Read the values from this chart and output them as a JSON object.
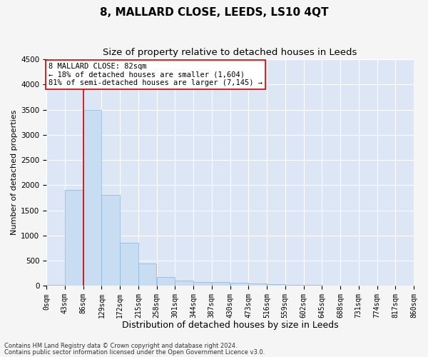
{
  "title": "8, MALLARD CLOSE, LEEDS, LS10 4QT",
  "subtitle": "Size of property relative to detached houses in Leeds",
  "xlabel": "Distribution of detached houses by size in Leeds",
  "ylabel": "Number of detached properties",
  "bin_edges": [
    0,
    43,
    86,
    129,
    172,
    215,
    258,
    301,
    344,
    387,
    430,
    473,
    516,
    559,
    602,
    645,
    688,
    731,
    774,
    817,
    860
  ],
  "bin_labels": [
    "0sqm",
    "43sqm",
    "86sqm",
    "129sqm",
    "172sqm",
    "215sqm",
    "258sqm",
    "301sqm",
    "344sqm",
    "387sqm",
    "430sqm",
    "473sqm",
    "516sqm",
    "559sqm",
    "602sqm",
    "645sqm",
    "688sqm",
    "731sqm",
    "774sqm",
    "817sqm",
    "860sqm"
  ],
  "bar_heights": [
    25,
    1900,
    3490,
    1800,
    855,
    450,
    175,
    100,
    80,
    75,
    65,
    50,
    35,
    20,
    15,
    10,
    8,
    5,
    5,
    3
  ],
  "bar_color": "#c9ddf2",
  "bar_edge_color": "#8ab4d8",
  "red_line_x": 86,
  "ylim": [
    0,
    4500
  ],
  "yticks": [
    0,
    500,
    1000,
    1500,
    2000,
    2500,
    3000,
    3500,
    4000,
    4500
  ],
  "annotation_line1": "8 MALLARD CLOSE: 82sqm",
  "annotation_line2": "← 18% of detached houses are smaller (1,604)",
  "annotation_line3": "81% of semi-detached houses are larger (7,145) →",
  "annotation_box_color": "#ffffff",
  "annotation_box_edge_color": "#cc0000",
  "footer_line1": "Contains HM Land Registry data © Crown copyright and database right 2024.",
  "footer_line2": "Contains public sector information licensed under the Open Government Licence v3.0.",
  "plot_bg_color": "#dce6f5",
  "fig_bg_color": "#f5f5f5",
  "grid_color": "#ffffff",
  "title_fontsize": 11,
  "subtitle_fontsize": 9.5,
  "xlabel_fontsize": 9,
  "ylabel_fontsize": 8,
  "tick_fontsize": 7,
  "annotation_fontsize": 7.5,
  "footer_fontsize": 6
}
